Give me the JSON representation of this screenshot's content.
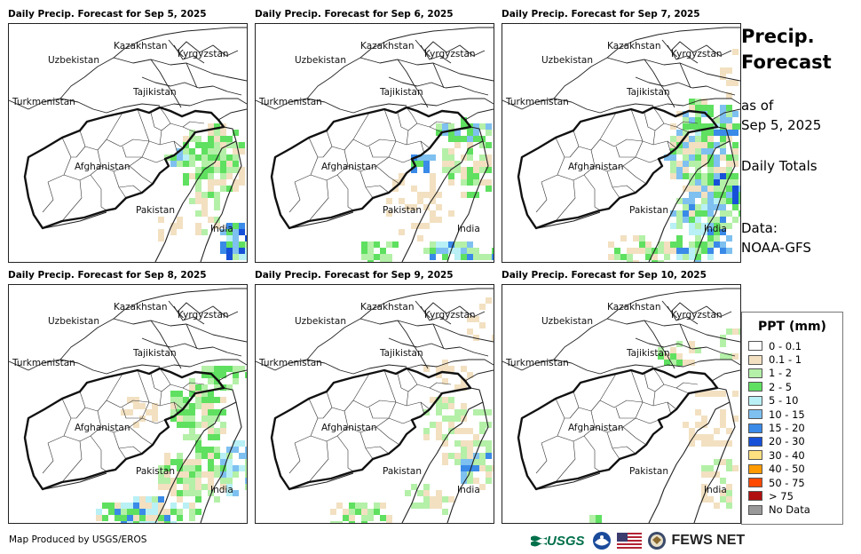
{
  "panels": [
    {
      "title": "Daily Precip. Forecast for Sep 5, 2025"
    },
    {
      "title": "Daily Precip. Forecast for Sep 6, 2025"
    },
    {
      "title": "Daily Precip. Forecast for Sep 7, 2025"
    },
    {
      "title": "Daily Precip. Forecast for Sep 8, 2025"
    },
    {
      "title": "Daily Precip. Forecast for Sep 9, 2025"
    },
    {
      "title": "Daily Precip. Forecast for Sep 10, 2025"
    }
  ],
  "map_labels": {
    "kazakhstan": "Kazakhstan",
    "kyrgyzstan": "Kyrgyzstan",
    "uzbekistan": "Uzbekistan",
    "tajikistan": "Tajikistan",
    "turkmenistan": "Turkmenistan",
    "afghanistan": "Afghanistan",
    "pakistan": "Pakistan",
    "india": "India"
  },
  "sidebar": {
    "title_line1": "Precip.",
    "title_line2": "Forecast",
    "asof_line1": "as of",
    "asof_line2": "Sep 5, 2025",
    "totals": "Daily Totals",
    "data_line1": "Data:",
    "data_line2": "NOAA-GFS"
  },
  "legend": {
    "title": "PPT (mm)",
    "items": [
      {
        "label": "0 - 0.1",
        "color": "#ffffff"
      },
      {
        "label": "0.1 - 1",
        "color": "#f2e0c1"
      },
      {
        "label": "1 - 2",
        "color": "#b4f0a8"
      },
      {
        "label": "2 - 5",
        "color": "#5fe060"
      },
      {
        "label": "5 - 10",
        "color": "#b8f0f5"
      },
      {
        "label": "10 - 15",
        "color": "#7ec0f0"
      },
      {
        "label": "15 - 20",
        "color": "#3a8ae8"
      },
      {
        "label": "20 - 30",
        "color": "#1650d8"
      },
      {
        "label": "30 - 40",
        "color": "#ffe080"
      },
      {
        "label": "40 - 50",
        "color": "#ff9a00"
      },
      {
        "label": "50 - 75",
        "color": "#ff4a00"
      },
      {
        "label": "> 75",
        "color": "#b01010"
      },
      {
        "label": "No Data",
        "color": "#999999"
      }
    ]
  },
  "footer": {
    "credit": "Map Produced by USGS/EROS",
    "usgs": "USGS",
    "fews": "FEWS NET"
  }
}
